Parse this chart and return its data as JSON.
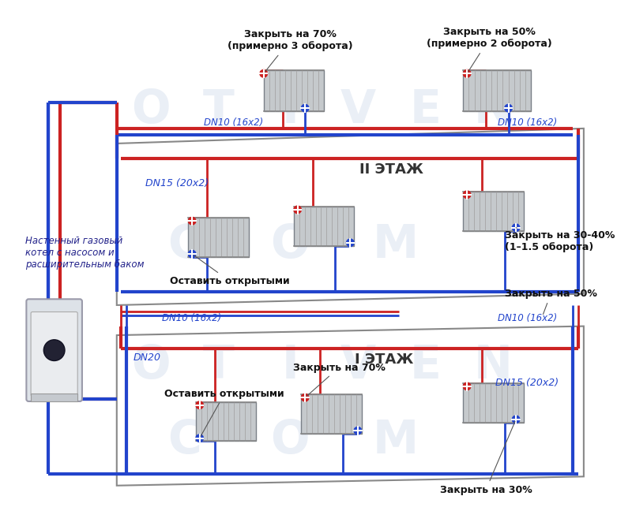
{
  "bg_color": "#ffffff",
  "pipe_hot_color": "#cc2222",
  "pipe_cold_color": "#2244cc",
  "pipe_lw": 2.0,
  "pipe_lw_main": 3.0,
  "floor2_label": "II ЭТАЖ",
  "floor1_label": "I ЭТАЖ",
  "boiler_label": "Настенный газовый\nкотел с насосом и\nрасширительным баком",
  "labels": {
    "dn10_top_left": "DN10 (16x2)",
    "dn10_top_right": "DN10 (16x2)",
    "dn15_floor2": "DN15 (20x2)",
    "dn10_mid_left": "DN10 (16x2)",
    "dn10_mid_right": "DN10 (16x2)",
    "dn20_floor1": "DN20",
    "dn15_floor1": "DN15 (20x2)",
    "close_70_top": "Закрыть на 70%\n(примерно 3 оборота)",
    "close_50_top": "Закрыть на 50%\n(примерно 2 оборота)",
    "open_floor2": "Оставить открытыми",
    "close_3040": "Закрыть на 30-40%\n(1–1.5 оборота)",
    "close_50_mid": "Закрыть на 50%",
    "close_70_floor1": "Закрыть на 70%",
    "open_floor1": "Оставить открытыми",
    "close_30_floor1": "Закрыть на 30%"
  },
  "wm_rows": [
    [
      [
        200,
        130,
        "O"
      ],
      [
        290,
        130,
        "T"
      ],
      [
        385,
        130,
        "I"
      ],
      [
        475,
        130,
        "V"
      ],
      [
        565,
        130,
        "E"
      ],
      [
        655,
        130,
        "N"
      ]
    ],
    [
      [
        245,
        310,
        "C"
      ],
      [
        385,
        310,
        "O"
      ],
      [
        525,
        310,
        "M"
      ]
    ],
    [
      [
        200,
        470,
        "O"
      ],
      [
        290,
        470,
        "T"
      ],
      [
        385,
        470,
        "I"
      ],
      [
        475,
        470,
        "V"
      ],
      [
        565,
        470,
        "E"
      ],
      [
        655,
        470,
        "N"
      ]
    ],
    [
      [
        245,
        570,
        "C"
      ],
      [
        385,
        570,
        "O"
      ],
      [
        525,
        570,
        "M"
      ]
    ]
  ]
}
